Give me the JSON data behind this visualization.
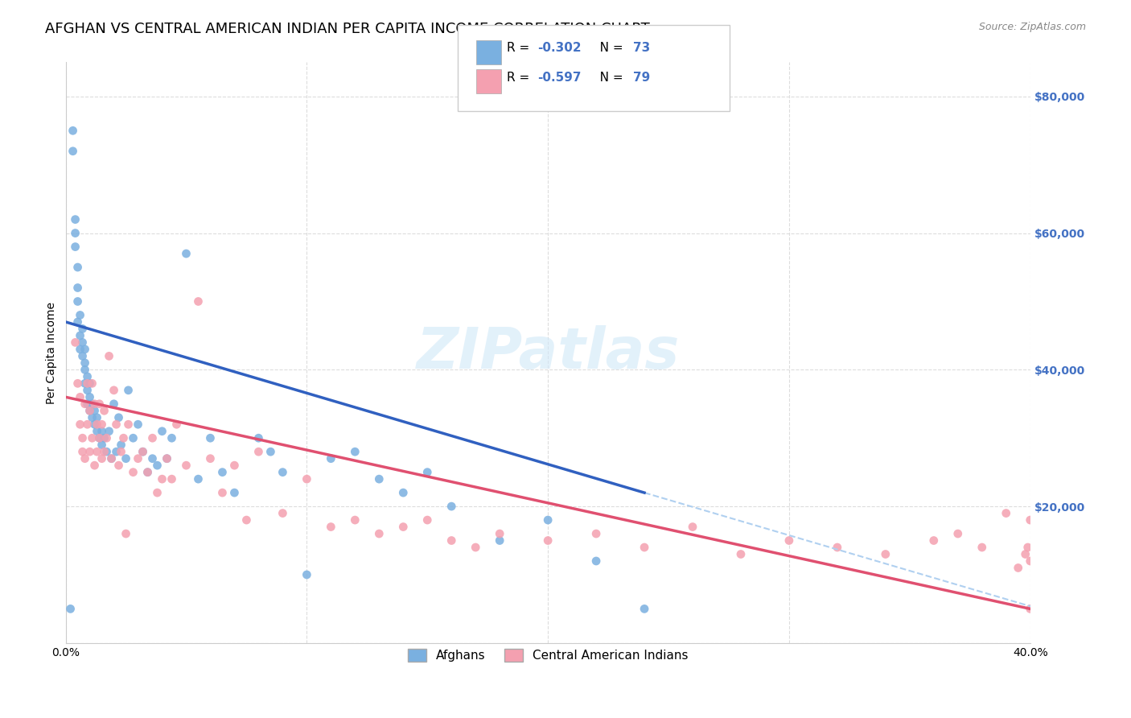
{
  "title": "AFGHAN VS CENTRAL AMERICAN INDIAN PER CAPITA INCOME CORRELATION CHART",
  "source": "Source: ZipAtlas.com",
  "xlabel": "",
  "ylabel": "Per Capita Income",
  "xlim": [
    0.0,
    0.4
  ],
  "ylim": [
    0,
    85000
  ],
  "yticks": [
    0,
    20000,
    40000,
    60000,
    80000
  ],
  "ytick_labels": [
    "",
    "$20,000",
    "$40,000",
    "$60,000",
    "$80,000"
  ],
  "xticks": [
    0.0,
    0.1,
    0.2,
    0.3,
    0.4
  ],
  "xtick_labels": [
    "0.0%",
    "",
    "",
    "",
    "40.0%"
  ],
  "legend_r1": "R = -0.302   N = 73",
  "legend_r2": "R = -0.597   N = 79",
  "blue_color": "#7ab0e0",
  "pink_color": "#f4a0b0",
  "blue_line_color": "#3060c0",
  "pink_line_color": "#e05070",
  "dashed_line_color": "#b0d0f0",
  "watermark": "ZIPatlas",
  "afghans_label": "Afghans",
  "central_label": "Central American Indians",
  "blue_scatter_x": [
    0.002,
    0.003,
    0.003,
    0.004,
    0.004,
    0.004,
    0.005,
    0.005,
    0.005,
    0.005,
    0.006,
    0.006,
    0.006,
    0.007,
    0.007,
    0.007,
    0.008,
    0.008,
    0.008,
    0.008,
    0.009,
    0.009,
    0.009,
    0.01,
    0.01,
    0.01,
    0.011,
    0.011,
    0.012,
    0.012,
    0.013,
    0.013,
    0.014,
    0.015,
    0.015,
    0.016,
    0.017,
    0.018,
    0.019,
    0.02,
    0.021,
    0.022,
    0.023,
    0.025,
    0.026,
    0.028,
    0.03,
    0.032,
    0.034,
    0.036,
    0.038,
    0.04,
    0.042,
    0.044,
    0.05,
    0.055,
    0.06,
    0.065,
    0.07,
    0.08,
    0.085,
    0.09,
    0.1,
    0.11,
    0.12,
    0.13,
    0.14,
    0.15,
    0.16,
    0.18,
    0.2,
    0.22,
    0.24
  ],
  "blue_scatter_y": [
    5000,
    72000,
    75000,
    60000,
    62000,
    58000,
    47000,
    50000,
    52000,
    55000,
    45000,
    48000,
    43000,
    42000,
    44000,
    46000,
    41000,
    43000,
    38000,
    40000,
    37000,
    39000,
    35000,
    36000,
    38000,
    34000,
    33000,
    35000,
    32000,
    34000,
    31000,
    33000,
    30000,
    31000,
    29000,
    30000,
    28000,
    31000,
    27000,
    35000,
    28000,
    33000,
    29000,
    27000,
    37000,
    30000,
    32000,
    28000,
    25000,
    27000,
    26000,
    31000,
    27000,
    30000,
    57000,
    24000,
    30000,
    25000,
    22000,
    30000,
    28000,
    25000,
    10000,
    27000,
    28000,
    24000,
    22000,
    25000,
    20000,
    15000,
    18000,
    12000,
    5000
  ],
  "pink_scatter_x": [
    0.004,
    0.005,
    0.006,
    0.006,
    0.007,
    0.007,
    0.008,
    0.008,
    0.009,
    0.009,
    0.01,
    0.01,
    0.011,
    0.011,
    0.012,
    0.012,
    0.013,
    0.013,
    0.014,
    0.014,
    0.015,
    0.015,
    0.016,
    0.016,
    0.017,
    0.018,
    0.019,
    0.02,
    0.021,
    0.022,
    0.023,
    0.024,
    0.025,
    0.026,
    0.028,
    0.03,
    0.032,
    0.034,
    0.036,
    0.038,
    0.04,
    0.042,
    0.044,
    0.046,
    0.05,
    0.055,
    0.06,
    0.065,
    0.07,
    0.075,
    0.08,
    0.09,
    0.1,
    0.11,
    0.12,
    0.13,
    0.14,
    0.15,
    0.16,
    0.17,
    0.18,
    0.2,
    0.22,
    0.24,
    0.26,
    0.28,
    0.3,
    0.32,
    0.34,
    0.36,
    0.37,
    0.38,
    0.39,
    0.395,
    0.398,
    0.399,
    0.4,
    0.4,
    0.4
  ],
  "pink_scatter_y": [
    44000,
    38000,
    32000,
    36000,
    28000,
    30000,
    35000,
    27000,
    38000,
    32000,
    34000,
    28000,
    38000,
    30000,
    35000,
    26000,
    32000,
    28000,
    35000,
    30000,
    27000,
    32000,
    28000,
    34000,
    30000,
    42000,
    27000,
    37000,
    32000,
    26000,
    28000,
    30000,
    16000,
    32000,
    25000,
    27000,
    28000,
    25000,
    30000,
    22000,
    24000,
    27000,
    24000,
    32000,
    26000,
    50000,
    27000,
    22000,
    26000,
    18000,
    28000,
    19000,
    24000,
    17000,
    18000,
    16000,
    17000,
    18000,
    15000,
    14000,
    16000,
    15000,
    16000,
    14000,
    17000,
    13000,
    15000,
    14000,
    13000,
    15000,
    16000,
    14000,
    19000,
    11000,
    13000,
    14000,
    12000,
    18000,
    5000
  ],
  "blue_line_x": [
    0.0,
    0.24
  ],
  "blue_line_y": [
    47000,
    22000
  ],
  "pink_line_x": [
    0.0,
    0.4
  ],
  "pink_line_y": [
    36000,
    5000
  ],
  "dashed_line_x": [
    0.24,
    0.5
  ],
  "dashed_line_y": [
    22000,
    -5000
  ],
  "background_color": "#ffffff",
  "grid_color": "#dddddd",
  "title_fontsize": 13,
  "axis_label_fontsize": 10,
  "tick_label_fontsize": 10,
  "right_tick_color": "#4472c4"
}
